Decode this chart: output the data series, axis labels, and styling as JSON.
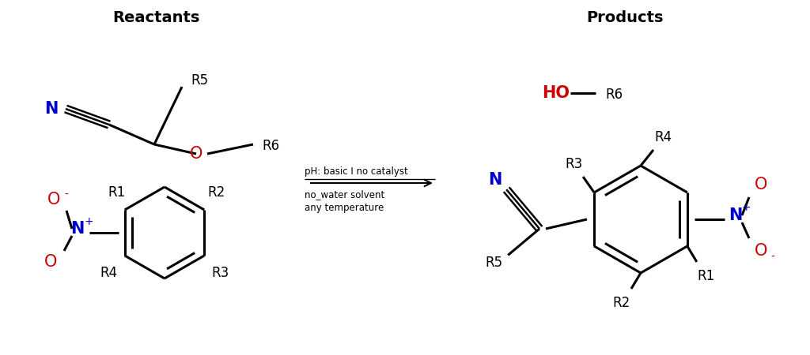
{
  "title_reactants": "Reactants",
  "title_products": "Products",
  "bg_color": "#ffffff",
  "black": "#000000",
  "blue": "#0000cc",
  "red": "#cc0000",
  "arrow_text_line1": "pH: basic I no catalyst",
  "arrow_text_line2": "no_water solvent",
  "arrow_text_line3": "any temperature",
  "figsize": [
    10.24,
    4.5
  ],
  "dpi": 100
}
